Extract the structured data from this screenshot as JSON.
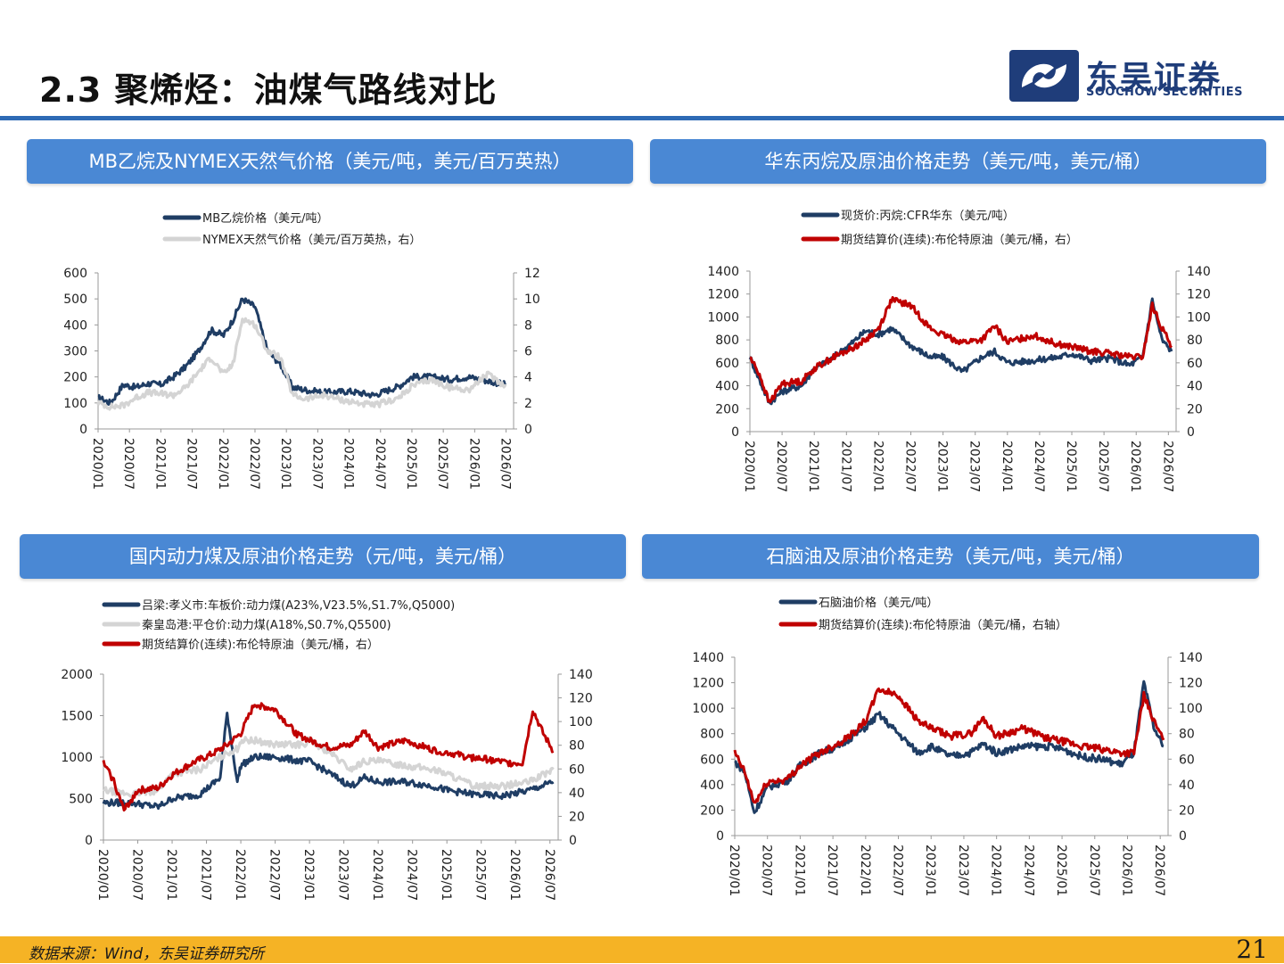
{
  "title": "2.3 聚烯烃：油煤气路线对比",
  "brand": {
    "cn": "东吴证券",
    "en": "SOOCHOW SECURITIES"
  },
  "footer": {
    "source": "数据来源：Wind，东吴证券研究所",
    "page": "21"
  },
  "colors": {
    "navy": "#1f3d64",
    "lightgray": "#d4d4d4",
    "red": "#c00000",
    "header": "#4a88d4",
    "rule": "#2e6bb5",
    "footer": "#f5b325"
  },
  "chart_data": [
    {
      "type": "line",
      "panel_title": "MB乙烷及NYMEX天然气价格（美元/吨，美元/百万英热）",
      "legend_position": "top-left",
      "x_tick_labels": [
        "2020/01",
        "2020/07",
        "2021/01",
        "2021/07",
        "2022/01",
        "2022/07",
        "2023/01",
        "2023/07",
        "2024/01",
        "2024/07",
        "2025/01",
        "2025/07",
        "2026/01",
        "2026/07"
      ],
      "y_left": {
        "range": [
          0,
          600
        ],
        "ticks": [
          "0",
          "100",
          "200",
          "300",
          "400",
          "500",
          "600"
        ]
      },
      "y_right": {
        "range": [
          0,
          12
        ],
        "ticks": [
          "0",
          "2",
          "4",
          "6",
          "8",
          "10",
          "12"
        ]
      },
      "series": [
        {
          "name": "MB乙烷价格（美元/吨）",
          "axis": "left",
          "color": "#1f3d64",
          "x": [
            2020.0,
            2020.2,
            2020.4,
            2020.6,
            2020.8,
            2021.0,
            2021.2,
            2021.4,
            2021.6,
            2021.8,
            2022.0,
            2022.15,
            2022.3,
            2022.5,
            2022.7,
            2022.9,
            2023.1,
            2023.3,
            2023.6,
            2024.0,
            2024.4,
            2024.8,
            2025.0,
            2025.3,
            2025.6,
            2025.9,
            2026.2,
            2026.5
          ],
          "values": [
            120,
            100,
            170,
            160,
            175,
            170,
            200,
            240,
            300,
            380,
            360,
            420,
            500,
            470,
            300,
            250,
            160,
            150,
            140,
            145,
            130,
            165,
            200,
            200,
            190,
            200,
            185,
            170
          ]
        },
        {
          "name": "NYMEX天然气价格（美元/百万英热，右）",
          "axis": "right",
          "color": "#d4d4d4",
          "x": [
            2020.0,
            2020.2,
            2020.4,
            2020.6,
            2020.8,
            2021.0,
            2021.2,
            2021.4,
            2021.6,
            2021.8,
            2022.0,
            2022.15,
            2022.3,
            2022.5,
            2022.7,
            2022.9,
            2023.1,
            2023.3,
            2023.6,
            2024.0,
            2024.4,
            2024.8,
            2025.0,
            2025.3,
            2025.6,
            2025.9,
            2026.2,
            2026.5
          ],
          "values": [
            2.0,
            1.7,
            1.8,
            2.4,
            2.8,
            2.7,
            2.6,
            3.2,
            4.4,
            5.5,
            4.2,
            5.0,
            8.5,
            8.0,
            6.0,
            5.5,
            2.6,
            2.3,
            2.6,
            2.1,
            1.8,
            2.4,
            3.3,
            3.8,
            3.2,
            3.0,
            4.2,
            3.3
          ]
        }
      ]
    },
    {
      "type": "line",
      "panel_title": "华东丙烷及原油价格走势（美元/吨，美元/桶）",
      "legend_position": "top-center",
      "x_tick_labels": [
        "2020/01",
        "2020/07",
        "2021/01",
        "2021/07",
        "2022/01",
        "2022/07",
        "2023/01",
        "2023/07",
        "2024/01",
        "2024/07",
        "2025/01",
        "2025/07",
        "2026/01",
        "2026/07"
      ],
      "y_left": {
        "range": [
          0,
          1400
        ],
        "ticks": [
          "0",
          "200",
          "400",
          "600",
          "800",
          "1000",
          "1200",
          "1400"
        ]
      },
      "y_right": {
        "range": [
          0,
          140
        ],
        "ticks": [
          "0",
          "20",
          "40",
          "60",
          "80",
          "100",
          "120",
          "140"
        ]
      },
      "series": [
        {
          "name": "现货价:丙烷:CFR华东（美元/吨）",
          "axis": "left",
          "color": "#1f3d64",
          "x": [
            2020.0,
            2020.15,
            2020.3,
            2020.5,
            2020.8,
            2021.0,
            2021.3,
            2021.6,
            2021.8,
            2022.0,
            2022.2,
            2022.5,
            2022.8,
            2023.0,
            2023.3,
            2023.6,
            2023.8,
            2024.0,
            2024.4,
            2024.8,
            2025.0,
            2025.3,
            2025.6,
            2025.9,
            2026.1,
            2026.25,
            2026.4,
            2026.55
          ],
          "values": [
            650,
            450,
            250,
            350,
            400,
            550,
            650,
            780,
            880,
            850,
            900,
            750,
            650,
            650,
            520,
            650,
            700,
            600,
            620,
            650,
            680,
            620,
            640,
            580,
            650,
            1150,
            800,
            700
          ]
        },
        {
          "name": "期货结算价(连续):布伦特原油（美元/桶，右）",
          "axis": "right",
          "color": "#c00000",
          "x": [
            2020.0,
            2020.15,
            2020.3,
            2020.5,
            2020.8,
            2021.0,
            2021.3,
            2021.6,
            2021.8,
            2022.0,
            2022.2,
            2022.5,
            2022.8,
            2023.0,
            2023.3,
            2023.6,
            2023.8,
            2024.0,
            2024.4,
            2024.8,
            2025.0,
            2025.3,
            2025.6,
            2025.9,
            2026.1,
            2026.25,
            2026.4,
            2026.55
          ],
          "values": [
            65,
            50,
            25,
            42,
            44,
            55,
            65,
            73,
            80,
            90,
            115,
            110,
            90,
            84,
            78,
            80,
            92,
            78,
            84,
            76,
            74,
            70,
            68,
            65,
            65,
            110,
            90,
            75
          ]
        }
      ]
    },
    {
      "type": "line",
      "panel_title": "国内动力煤及原油价格走势（元/吨，美元/桶）",
      "legend_position": "top-left",
      "x_tick_labels": [
        "2020/01",
        "2020/07",
        "2021/01",
        "2021/07",
        "2022/01",
        "2022/07",
        "2023/01",
        "2023/07",
        "2024/01",
        "2024/07",
        "2025/01",
        "2025/07",
        "2026/01",
        "2026/07"
      ],
      "y_left": {
        "range": [
          0,
          2000
        ],
        "ticks": [
          "0",
          "500",
          "1000",
          "1500",
          "2000"
        ]
      },
      "y_right": {
        "range": [
          0,
          140
        ],
        "ticks": [
          "0",
          "20",
          "40",
          "60",
          "80",
          "100",
          "120",
          "140"
        ]
      },
      "series": [
        {
          "name": "吕梁:孝义市:车板价:动力煤(A23%,V23.5%,S1.7%,Q5000)",
          "axis": "left",
          "color": "#1f3d64",
          "x": [
            2020.0,
            2020.4,
            2020.8,
            2021.0,
            2021.4,
            2021.7,
            2021.8,
            2021.95,
            2022.0,
            2022.2,
            2022.5,
            2022.9,
            2023.0,
            2023.3,
            2023.6,
            2023.8,
            2024.0,
            2024.4,
            2024.8,
            2025.0,
            2025.4,
            2025.8,
            2026.2,
            2026.55
          ],
          "values": [
            450,
            450,
            400,
            500,
            550,
            750,
            1530,
            700,
            900,
            1000,
            1000,
            950,
            950,
            800,
            650,
            750,
            700,
            700,
            650,
            600,
            550,
            530,
            600,
            700
          ]
        },
        {
          "name": "秦皇岛港:平仓价:动力煤(A18%,S0.7%,Q5500)",
          "axis": "left",
          "color": "#d4d4d4",
          "x": [
            2020.0,
            2020.4,
            2020.8,
            2021.0,
            2021.4,
            2021.7,
            2021.8,
            2021.95,
            2022.0,
            2022.2,
            2022.5,
            2022.9,
            2023.0,
            2023.3,
            2023.6,
            2023.8,
            2024.0,
            2024.4,
            2024.8,
            2025.0,
            2025.4,
            2025.8,
            2026.2,
            2026.55
          ],
          "values": [
            600,
            550,
            600,
            800,
            850,
            1000,
            1050,
            1100,
            1200,
            1200,
            1150,
            1150,
            1200,
            1050,
            850,
            950,
            950,
            900,
            850,
            800,
            650,
            650,
            700,
            850
          ]
        },
        {
          "name": "期货结算价(连续):布伦特原油（美元/桶，右）",
          "axis": "right",
          "color": "#c00000",
          "x": [
            2020.0,
            2020.15,
            2020.3,
            2020.5,
            2020.8,
            2021.0,
            2021.3,
            2021.6,
            2021.8,
            2022.0,
            2022.2,
            2022.5,
            2022.8,
            2023.0,
            2023.3,
            2023.6,
            2023.8,
            2024.0,
            2024.4,
            2024.8,
            2025.0,
            2025.3,
            2025.6,
            2025.9,
            2026.1,
            2026.25,
            2026.4,
            2026.55
          ],
          "values": [
            65,
            50,
            25,
            42,
            44,
            55,
            65,
            73,
            80,
            90,
            115,
            110,
            90,
            84,
            78,
            80,
            92,
            78,
            84,
            76,
            74,
            70,
            68,
            65,
            65,
            110,
            90,
            75
          ]
        }
      ]
    },
    {
      "type": "line",
      "panel_title": "石脑油及原油价格走势（美元/吨，美元/桶）",
      "legend_position": "top-center",
      "x_tick_labels": [
        "2020/01",
        "2020/07",
        "2021/01",
        "2021/07",
        "2022/01",
        "2022/07",
        "2023/01",
        "2023/07",
        "2024/01",
        "2024/07",
        "2025/01",
        "2025/07",
        "2026/01",
        "2026/07"
      ],
      "y_left": {
        "range": [
          0,
          1400
        ],
        "ticks": [
          "0",
          "200",
          "400",
          "600",
          "800",
          "1000",
          "1200",
          "1400"
        ]
      },
      "y_right": {
        "range": [
          0,
          140
        ],
        "ticks": [
          "0",
          "20",
          "40",
          "60",
          "80",
          "100",
          "120",
          "140"
        ]
      },
      "series": [
        {
          "name": "石脑油价格（美元/吨）",
          "axis": "left",
          "color": "#1f3d64",
          "x": [
            2020.0,
            2020.15,
            2020.3,
            2020.5,
            2020.8,
            2021.0,
            2021.3,
            2021.6,
            2021.8,
            2022.0,
            2022.2,
            2022.5,
            2022.8,
            2023.0,
            2023.3,
            2023.6,
            2023.8,
            2024.0,
            2024.4,
            2024.8,
            2025.0,
            2025.3,
            2025.6,
            2025.9,
            2026.1,
            2026.25,
            2026.4,
            2026.55
          ],
          "values": [
            580,
            500,
            180,
            380,
            430,
            550,
            650,
            700,
            780,
            850,
            950,
            800,
            650,
            700,
            620,
            650,
            720,
            650,
            700,
            700,
            680,
            620,
            600,
            560,
            650,
            1200,
            850,
            700
          ]
        },
        {
          "name": "期货结算价(连续):布伦特原油（美元/桶，右轴）",
          "axis": "right",
          "color": "#c00000",
          "x": [
            2020.0,
            2020.15,
            2020.3,
            2020.5,
            2020.8,
            2021.0,
            2021.3,
            2021.6,
            2021.8,
            2022.0,
            2022.2,
            2022.5,
            2022.8,
            2023.0,
            2023.3,
            2023.6,
            2023.8,
            2024.0,
            2024.4,
            2024.8,
            2025.0,
            2025.3,
            2025.6,
            2025.9,
            2026.1,
            2026.25,
            2026.4,
            2026.55
          ],
          "values": [
            65,
            50,
            25,
            42,
            44,
            55,
            65,
            73,
            80,
            90,
            115,
            110,
            90,
            84,
            78,
            80,
            92,
            78,
            84,
            76,
            74,
            70,
            68,
            65,
            65,
            110,
            90,
            75
          ]
        }
      ]
    }
  ]
}
